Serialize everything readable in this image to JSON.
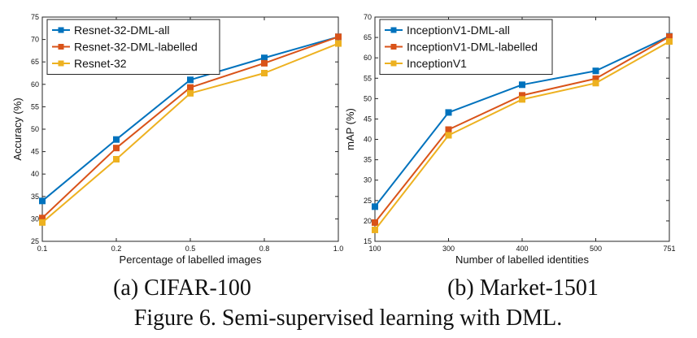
{
  "chart_data": [
    {
      "type": "line",
      "title": "",
      "xlabel": "Percentage of labelled images",
      "ylabel": "Accuracy (%)",
      "categories": [
        "0.1",
        "0.2",
        "0.5",
        "0.8",
        "1.0"
      ],
      "ylim": [
        25,
        75
      ],
      "yticks": [
        "25",
        "30",
        "35",
        "40",
        "45",
        "50",
        "55",
        "60",
        "65",
        "70",
        "75"
      ],
      "grid": false,
      "legend_position": "top-left",
      "series": [
        {
          "name": "Resnet-32-DML-all",
          "color": "#0072BD",
          "values": [
            34.0,
            47.7,
            61.0,
            65.9,
            70.6
          ]
        },
        {
          "name": "Resnet-32-DML-labelled",
          "color": "#D95319",
          "values": [
            30.2,
            45.8,
            59.3,
            64.7,
            70.6
          ]
        },
        {
          "name": "Resnet-32",
          "color": "#EDB120",
          "values": [
            29.2,
            43.3,
            58.0,
            62.5,
            69.1
          ]
        }
      ]
    },
    {
      "type": "line",
      "title": "",
      "xlabel": "Number of labelled identities",
      "ylabel": "mAP (%)",
      "categories": [
        "100",
        "300",
        "400",
        "500",
        "751"
      ],
      "ylim": [
        15,
        70
      ],
      "yticks": [
        "15",
        "20",
        "25",
        "30",
        "35",
        "40",
        "45",
        "50",
        "55",
        "60",
        "65",
        "70"
      ],
      "grid": false,
      "legend_position": "top-left",
      "series": [
        {
          "name": "InceptionV1-DML-all",
          "color": "#0072BD",
          "values": [
            23.5,
            46.6,
            53.4,
            56.8,
            65.3
          ]
        },
        {
          "name": "InceptionV1-DML-labelled",
          "color": "#D95319",
          "values": [
            19.6,
            42.4,
            50.8,
            54.9,
            65.2
          ]
        },
        {
          "name": "InceptionV1",
          "color": "#EDB120",
          "values": [
            17.8,
            41.0,
            49.8,
            53.8,
            64.0
          ]
        }
      ]
    }
  ],
  "captions": {
    "sub_a": "(a) CIFAR-100",
    "sub_b": "(b) Market-1501",
    "figure": "Figure 6. Semi-supervised learning with DML."
  }
}
